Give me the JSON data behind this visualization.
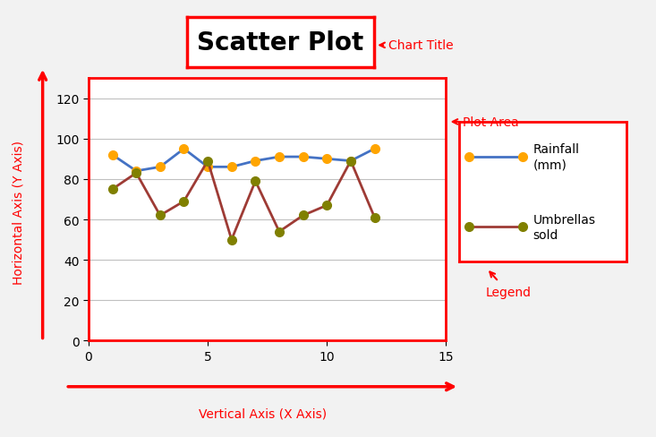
{
  "x": [
    1,
    2,
    3,
    4,
    5,
    6,
    7,
    8,
    9,
    10,
    11,
    12
  ],
  "rainfall": [
    92,
    84,
    86,
    95,
    86,
    86,
    89,
    91,
    91,
    90,
    89,
    95
  ],
  "umbrellas": [
    75,
    83,
    62,
    69,
    89,
    50,
    79,
    54,
    62,
    67,
    89,
    61
  ],
  "rainfall_color": "#4472C4",
  "umbrellas_color": "#9E3B35",
  "marker_color_rainfall": "#FFA500",
  "marker_color_umbrellas": "#808000",
  "title": "Scatter Plot",
  "xlabel": "Vertical Axis (X Axis)",
  "ylabel": "Horizontal Axis (Y Axis)",
  "xlim": [
    0,
    15
  ],
  "ylim": [
    0,
    130
  ],
  "yticks": [
    0,
    20,
    40,
    60,
    80,
    100,
    120
  ],
  "xticks": [
    0,
    5,
    10,
    15
  ],
  "annotation_chart_title": "Chart Title",
  "annotation_plot_area": "Plot Area",
  "annotation_legend": "Legend",
  "legend_label_1": "Rainfall\n(mm)",
  "legend_label_2": "Umbrellas\nsold",
  "fig_bg": "#f2f2f2",
  "plot_bg_color": "#ffffff",
  "red_color": "#FF0000"
}
